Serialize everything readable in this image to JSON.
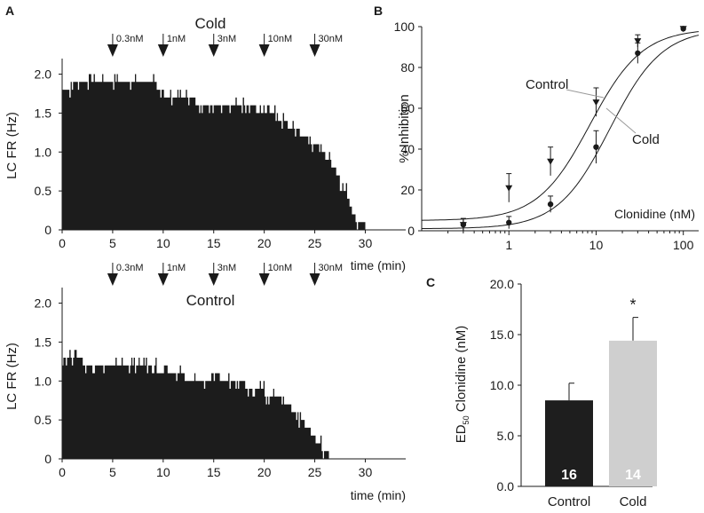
{
  "panels": {
    "a_label": "A",
    "b_label": "B",
    "c_label": "C"
  },
  "chart_data": [
    {
      "id": "A_cold",
      "type": "area",
      "title": "Cold",
      "xlabel": "time (min)",
      "ylabel": "LC FR (Hz)",
      "xlim": [
        0,
        34
      ],
      "ylim": [
        0,
        2.2
      ],
      "xticks": [
        "0",
        "5",
        "10",
        "15",
        "20",
        "25",
        "30"
      ],
      "yticks": [
        "0",
        "0.5",
        "1.0",
        "1.5",
        "2.0"
      ],
      "doses": [
        {
          "label": "0.3nM",
          "time": 5
        },
        {
          "label": "1nM",
          "time": 10
        },
        {
          "label": "3nM",
          "time": 15
        },
        {
          "label": "10nM",
          "time": 20
        },
        {
          "label": "30nM",
          "time": 25
        }
      ],
      "trace": {
        "x": [
          0,
          1,
          2,
          3,
          4,
          5,
          6,
          7,
          8,
          9,
          10,
          11,
          12,
          13,
          14,
          15,
          16,
          17,
          18,
          19,
          20,
          21,
          22,
          23,
          24,
          25,
          26,
          27,
          28,
          29,
          30,
          31
        ],
        "y": [
          1.82,
          1.85,
          1.9,
          1.9,
          1.9,
          1.9,
          1.85,
          1.9,
          1.9,
          1.85,
          1.75,
          1.72,
          1.7,
          1.65,
          1.62,
          1.6,
          1.6,
          1.6,
          1.6,
          1.55,
          1.5,
          1.45,
          1.38,
          1.28,
          1.18,
          1.1,
          0.95,
          0.78,
          0.5,
          0.15,
          0.05,
          0.0
        ]
      }
    },
    {
      "id": "A_control",
      "type": "area",
      "title": "Control",
      "xlabel": "time (min)",
      "ylabel": "LC FR (Hz)",
      "xlim": [
        0,
        34
      ],
      "ylim": [
        0,
        2.2
      ],
      "xticks": [
        "0",
        "5",
        "10",
        "15",
        "20",
        "25",
        "30"
      ],
      "yticks": [
        "0",
        "0.5",
        "1.0",
        "1.5",
        "2.0"
      ],
      "doses": [
        {
          "label": "0.3nM",
          "time": 5
        },
        {
          "label": "1nM",
          "time": 10
        },
        {
          "label": "3nM",
          "time": 15
        },
        {
          "label": "10nM",
          "time": 20
        },
        {
          "label": "30nM",
          "time": 25
        }
      ],
      "trace": {
        "x": [
          0,
          1,
          2,
          3,
          4,
          5,
          6,
          7,
          8,
          9,
          10,
          11,
          12,
          13,
          14,
          15,
          16,
          17,
          18,
          19,
          20,
          21,
          22,
          23,
          24,
          25,
          26,
          27
        ],
        "y": [
          1.28,
          1.25,
          1.25,
          1.2,
          1.2,
          1.2,
          1.18,
          1.2,
          1.15,
          1.2,
          1.05,
          1.05,
          1.05,
          1.0,
          1.0,
          1.0,
          1.0,
          0.98,
          0.95,
          0.9,
          0.85,
          0.8,
          0.72,
          0.6,
          0.45,
          0.28,
          0.08,
          0.0
        ]
      }
    },
    {
      "id": "B",
      "type": "line",
      "xlabel": "Clonidine (nM)",
      "ylabel": "% Inhibition",
      "xscale": "log",
      "xlim": [
        0.1,
        150
      ],
      "ylim": [
        0,
        100
      ],
      "xticks": [
        "1",
        "10",
        "100"
      ],
      "yticks": [
        "0",
        "20",
        "40",
        "60",
        "80",
        "100"
      ],
      "series": [
        {
          "name": "Control",
          "marker": "triangle-down",
          "x": [
            0.3,
            1,
            3,
            10,
            30,
            100
          ],
          "y": [
            3,
            21,
            34,
            63,
            93,
            99
          ],
          "err": [
            3,
            7,
            7,
            7,
            3,
            1
          ],
          "ed50": 8.5
        },
        {
          "name": "Cold",
          "marker": "circle",
          "x": [
            0.3,
            1,
            3,
            10,
            30,
            100
          ],
          "y": [
            3,
            4,
            13,
            41,
            87,
            99
          ],
          "err": [
            3,
            3,
            4,
            8,
            5,
            1
          ],
          "ed50": 14.4
        }
      ],
      "annotations": [
        "Control",
        "Cold"
      ]
    },
    {
      "id": "C",
      "type": "bar",
      "ylabel": "ED50 Clonidine (nM)",
      "ylabel_main": "ED",
      "ylabel_sub": "50",
      "ylabel_rest": " Clonidine (nM)",
      "ylim": [
        0,
        20
      ],
      "yticks": [
        "0.0",
        "5.0",
        "10.0",
        "15.0",
        "20.0"
      ],
      "categories": [
        "Control",
        "Cold"
      ],
      "values": [
        8.5,
        14.4
      ],
      "errors": [
        1.7,
        2.3
      ],
      "n": [
        "16",
        "14"
      ],
      "colors": [
        "#1e1e1e",
        "#cfcfcf"
      ],
      "significance": "*"
    }
  ]
}
